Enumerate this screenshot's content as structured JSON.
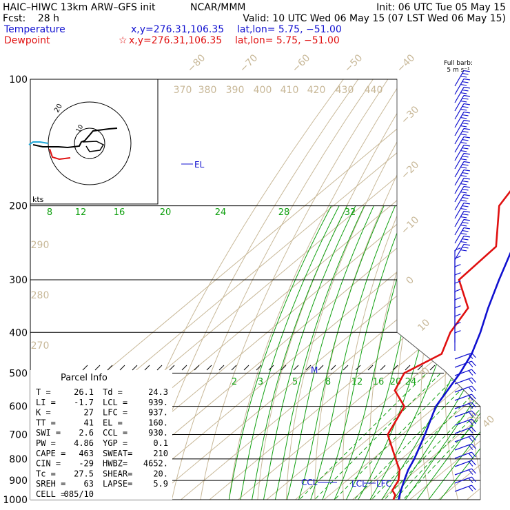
{
  "header": {
    "model": "HAIC–HIWC 13km ARW–GFS init",
    "center": "NCAR/MMM",
    "init": "Init: 06 UTC Tue 05 May 15",
    "fcst_label": "Fcst:",
    "fcst_value": "28 h",
    "valid": "Valid: 10 UTC Wed 06 May 15 (07 LST Wed 06 May 15)",
    "temp_label": "Temperature",
    "temp_xy": "x,y=276.31,106.35",
    "temp_latlon": "lat,lon=  5.75, −51.00",
    "dew_label": "Dewpoint",
    "dew_xy": "x,y=276.31,106.35",
    "dew_latlon": "lat,lon=  5.75, −51.00",
    "barb_key_line1": "Full barb:",
    "barb_key_line2": "5 m s⁻¹"
  },
  "colors": {
    "temperature": "#1010d0",
    "dewpoint": "#e01010",
    "isotherm": "#c8b898",
    "mixing_ratio": "#10a010"
  },
  "hodograph": {
    "units_label": "kts",
    "ring_label": "10",
    "outer_label": "20"
  },
  "parcel_info": {
    "title": "Parcel Info",
    "rows": [
      {
        "l": "T  =",
        "v": "26.1",
        "l2": "Td =",
        "v2": "24.3"
      },
      {
        "l": "LI =",
        "v": "-1.7",
        "l2": "LCL =",
        "v2": "939."
      },
      {
        "l": "K  =",
        "v": "27",
        "l2": "LFC =",
        "v2": "937."
      },
      {
        "l": "TT =",
        "v": "41",
        "l2": "EL  =",
        "v2": "160."
      },
      {
        "l": "SWI =",
        "v": "2.6",
        "l2": "CCL =",
        "v2": "930."
      },
      {
        "l": "PW =",
        "v": "4.86",
        "l2": "YGP =",
        "v2": "0.1"
      },
      {
        "l": "CAPE =",
        "v": "463",
        "l2": "SWEAT=",
        "v2": "210"
      },
      {
        "l": "CIN =",
        "v": "-29",
        "l2": "HWBZ=",
        "v2": "4652."
      },
      {
        "l": "Tc =",
        "v": "27.5",
        "l2": "SHEAR=",
        "v2": "20."
      },
      {
        "l": "SREH =",
        "v": "63",
        "l2": "LAPSE=",
        "v2": "5.9"
      },
      {
        "l": "CELL =",
        "v": "085/10",
        "l2": "",
        "v2": ""
      }
    ]
  },
  "chart_data": {
    "type": "line",
    "title": "",
    "pressure_ticks": [
      "100",
      "200",
      "300",
      "400",
      "500",
      "600",
      "700",
      "800",
      "900",
      "1000"
    ],
    "isotherm_labels_top": [
      "−80",
      "−70",
      "−60",
      "−50",
      "−40"
    ],
    "isotherm_labels_right": [
      "−30",
      "−20",
      "−10",
      "0",
      "10",
      "20",
      "30",
      "40"
    ],
    "theta_labels_top": [
      "370",
      "380",
      "390",
      "400",
      "410",
      "420",
      "430",
      "440"
    ],
    "theta_labels_left": [
      "290",
      "280",
      "270"
    ],
    "mixing_ratio_labels_upper": [
      "8",
      "12",
      "16",
      "20",
      "24",
      "28",
      "32"
    ],
    "mixing_ratio_labels_lower": [
      "2",
      "3",
      "5",
      "8",
      "12",
      "16",
      "20",
      "24"
    ],
    "level_labels": {
      "el": "EL",
      "m": "M",
      "ccl": "CCL",
      "lcl": "LCL",
      "lfc": "LFC"
    },
    "series": [
      {
        "name": "Temperature",
        "pressure": [
          1000,
          950,
          900,
          850,
          800,
          700,
          600,
          500,
          450,
          400,
          350,
          300,
          250,
          200,
          150,
          100
        ],
        "temp_c": [
          26.1,
          23,
          20,
          17,
          14.5,
          8,
          0,
          -5.5,
          -9.5,
          -15.5,
          -23,
          -31,
          -40,
          -51,
          -63,
          -77
        ]
      },
      {
        "name": "Dewpoint",
        "pressure": [
          1000,
          975,
          950,
          900,
          850,
          800,
          700,
          600,
          550,
          500,
          450,
          400,
          350,
          300,
          250,
          200,
          150,
          100
        ],
        "temp_c": [
          24.3,
          23,
          20,
          18,
          14,
          8,
          -5,
          -11,
          -21,
          -25,
          -20,
          -26,
          -30,
          -45,
          -46,
          -62,
          -70,
          -85
        ]
      }
    ]
  }
}
